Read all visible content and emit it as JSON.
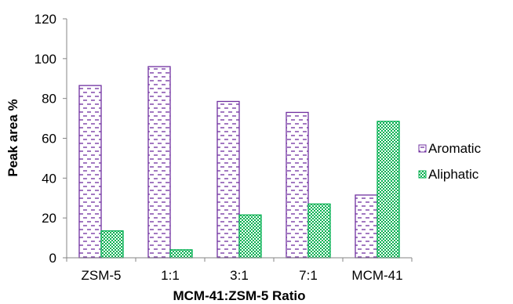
{
  "chart_data": {
    "type": "bar",
    "xlabel": "MCM-41:ZSM-5 Ratio",
    "ylabel": "Peak area %",
    "ylim": [
      0,
      120
    ],
    "yticks": [
      0,
      20,
      40,
      60,
      80,
      100,
      120
    ],
    "grid": false,
    "legend_position": "right",
    "categories": [
      "ZSM-5",
      "1:1",
      "3:1",
      "7:1",
      "MCM-41"
    ],
    "series": [
      {
        "name": "Aromatic",
        "values": [
          86.5,
          96,
          78.5,
          73,
          31.5
        ],
        "color": "#7030A0",
        "pattern": "dashes"
      },
      {
        "name": "Aliphatic",
        "values": [
          13.5,
          4,
          21.5,
          27,
          68.5
        ],
        "color": "#00B050",
        "pattern": "checker"
      }
    ]
  }
}
